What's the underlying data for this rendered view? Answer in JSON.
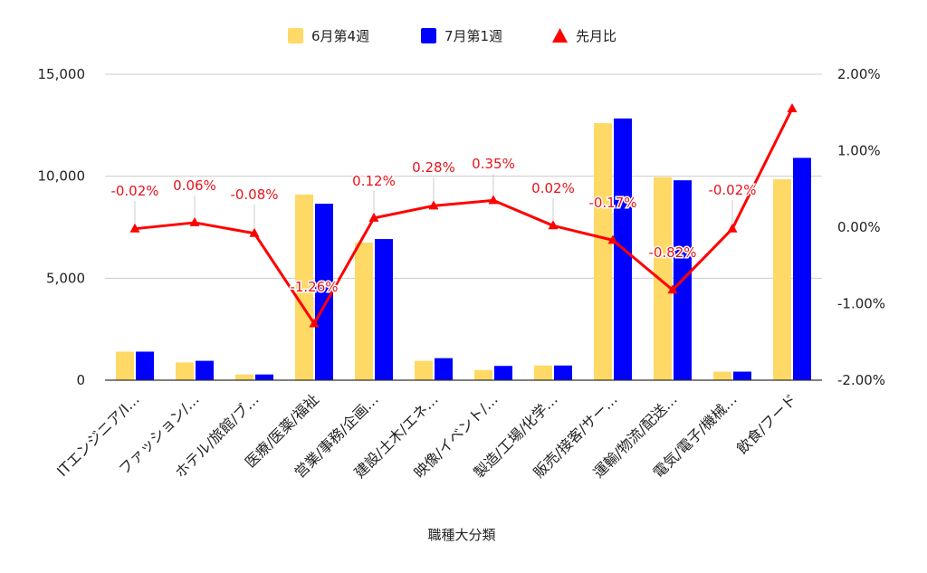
{
  "chart_data": {
    "type": "bar",
    "categories": [
      "ITエンジニア/I…",
      "ファッション/…",
      "ホテル/旅館/ブ…",
      "医療/医薬/福祉",
      "営業/事務/企画…",
      "建設/土木/エネ…",
      "映像/イベント/…",
      "製造/工場/化学…",
      "販売/接客/サー…",
      "運輸/物流/配送…",
      "電気/電子/機械…",
      "飲食/フード"
    ],
    "series": [
      {
        "name": "6月第4週",
        "type": "bar",
        "axis": "left",
        "color": "#ffd966",
        "values": [
          1400,
          870,
          280,
          9100,
          6750,
          950,
          500,
          720,
          12600,
          9950,
          420,
          9850
        ]
      },
      {
        "name": "7月第1週",
        "type": "bar",
        "axis": "left",
        "color": "#0000ff",
        "values": [
          1400,
          950,
          280,
          8650,
          6920,
          1080,
          700,
          720,
          12830,
          9800,
          420,
          10900
        ]
      },
      {
        "name": "先月比",
        "type": "line",
        "axis": "right",
        "color": "#ff0000",
        "values": [
          -0.02,
          0.06,
          -0.08,
          -1.26,
          0.12,
          0.28,
          0.35,
          0.02,
          -0.17,
          -0.82,
          -0.02,
          1.55
        ],
        "labels": [
          "-0.02%",
          "0.06%",
          "-0.08%",
          "-1.26%",
          "0.12%",
          "0.28%",
          "0.35%",
          "0.02%",
          "-0.17%",
          "-0.82%",
          "-0.02%",
          ""
        ]
      }
    ],
    "xlabel": "職種大分類",
    "left_axis": {
      "ylim": [
        0,
        15000
      ],
      "ticks": [
        0,
        5000,
        10000,
        15000
      ],
      "tick_labels": [
        "0",
        "5,000",
        "10,000",
        "15,000"
      ]
    },
    "right_axis": {
      "ylim": [
        -2,
        2
      ],
      "ticks": [
        -2,
        -1,
        0,
        1,
        2
      ],
      "tick_labels": [
        "-2.00%",
        "-1.00%",
        "0.00%",
        "1.00%",
        "2.00%"
      ]
    },
    "grid": true,
    "legend": "top-center"
  }
}
